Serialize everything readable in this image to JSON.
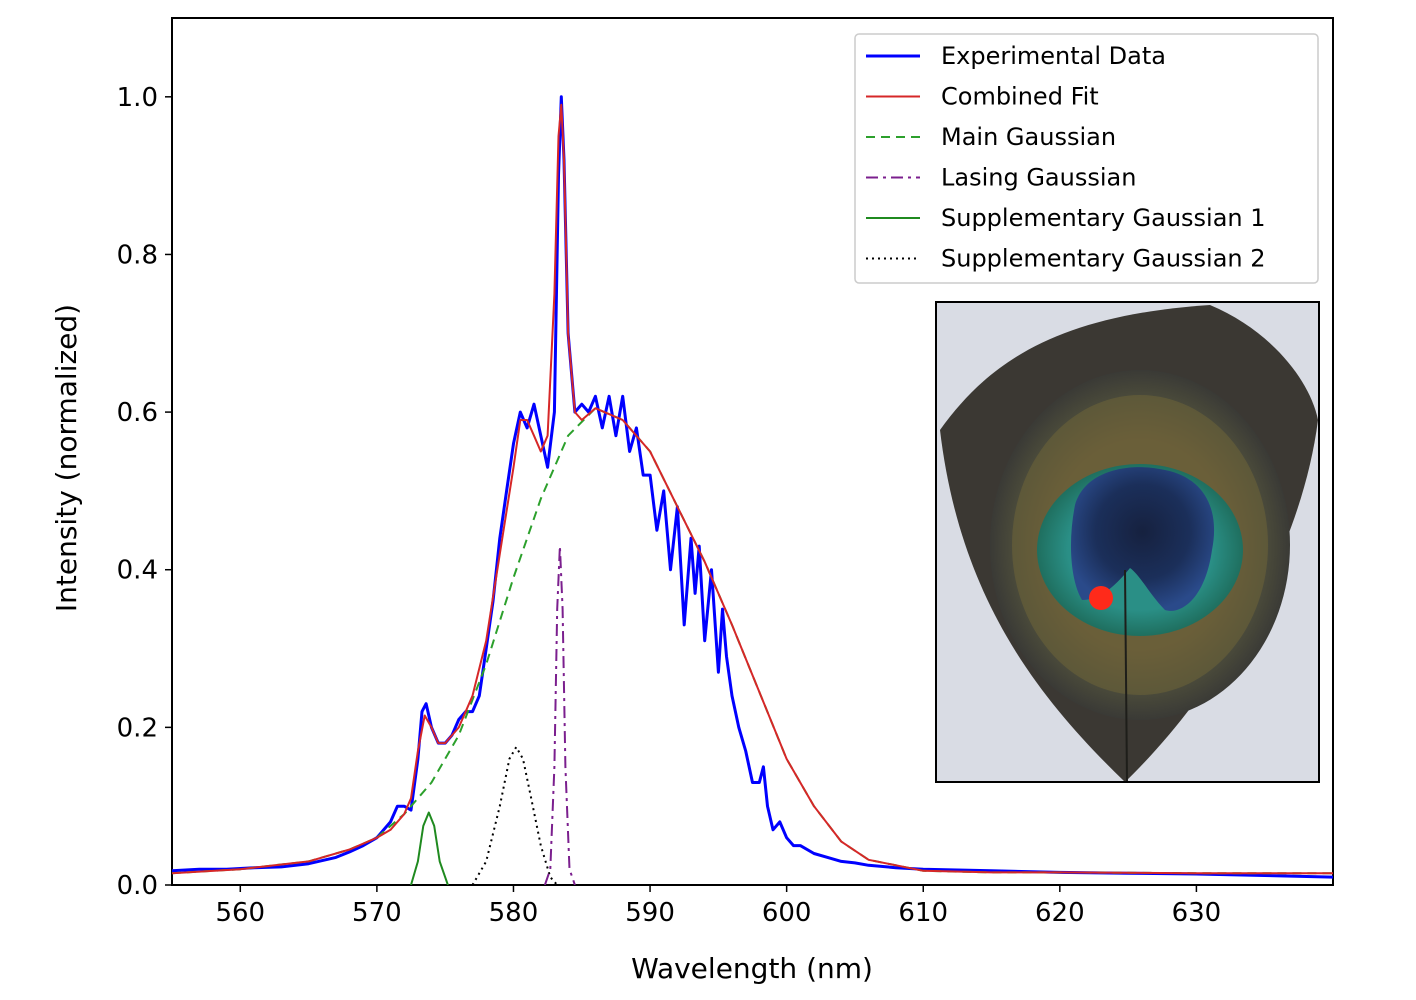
{
  "chart_data": {
    "type": "line",
    "xlabel": "Wavelength (nm)",
    "ylabel": "Intensity (normalized)",
    "xlim": [
      555,
      640
    ],
    "ylim": [
      0.0,
      1.1
    ],
    "x_ticks": [
      560,
      570,
      580,
      590,
      600,
      610,
      620,
      630
    ],
    "x_tick_labels": [
      "560",
      "570",
      "580",
      "590",
      "600",
      "610",
      "620",
      "630"
    ],
    "y_ticks": [
      0.0,
      0.2,
      0.4,
      0.6,
      0.8,
      1.0
    ],
    "y_tick_labels": [
      "0.0",
      "0.2",
      "0.4",
      "0.6",
      "0.8",
      "1.0"
    ],
    "grid": false,
    "legend_position": "top-right",
    "series": [
      {
        "name": "Experimental Data",
        "color": "#0000ff",
        "style": "solid",
        "x": [
          555,
          557,
          559,
          561,
          563,
          565,
          567,
          568,
          569,
          570,
          571,
          571.5,
          572,
          572.5,
          573,
          573.3,
          573.6,
          574,
          574.5,
          575,
          575.5,
          576,
          576.5,
          577,
          577.5,
          578,
          578.5,
          579,
          579.5,
          580,
          580.5,
          581,
          581.5,
          582,
          582.5,
          583,
          583.3,
          583.5,
          583.7,
          584,
          584.5,
          585,
          585.5,
          586,
          586.5,
          587,
          587.5,
          588,
          588.5,
          589,
          589.5,
          590,
          590.5,
          591,
          591.5,
          592,
          592.5,
          593,
          593.3,
          593.6,
          594,
          594.5,
          595,
          595.3,
          595.6,
          596,
          596.5,
          597,
          597.5,
          598,
          598.3,
          598.6,
          599,
          599.5,
          600,
          600.5,
          601,
          602,
          603,
          604,
          605,
          606,
          608,
          610,
          615,
          620,
          625,
          630,
          635,
          640
        ],
        "y": [
          0.018,
          0.02,
          0.02,
          0.022,
          0.023,
          0.027,
          0.035,
          0.042,
          0.05,
          0.06,
          0.08,
          0.1,
          0.1,
          0.095,
          0.16,
          0.22,
          0.23,
          0.2,
          0.18,
          0.18,
          0.19,
          0.21,
          0.22,
          0.22,
          0.24,
          0.3,
          0.36,
          0.44,
          0.5,
          0.56,
          0.6,
          0.58,
          0.61,
          0.57,
          0.53,
          0.6,
          0.9,
          1.0,
          0.92,
          0.7,
          0.6,
          0.61,
          0.6,
          0.62,
          0.58,
          0.62,
          0.57,
          0.62,
          0.55,
          0.58,
          0.52,
          0.52,
          0.45,
          0.5,
          0.4,
          0.48,
          0.33,
          0.44,
          0.37,
          0.43,
          0.31,
          0.4,
          0.27,
          0.35,
          0.29,
          0.24,
          0.2,
          0.17,
          0.13,
          0.13,
          0.15,
          0.1,
          0.07,
          0.08,
          0.06,
          0.05,
          0.05,
          0.04,
          0.035,
          0.03,
          0.028,
          0.025,
          0.022,
          0.02,
          0.018,
          0.016,
          0.015,
          0.014,
          0.012,
          0.01
        ]
      },
      {
        "name": "Combined Fit",
        "color": "#d62728",
        "style": "solid",
        "x": [
          555,
          560,
          565,
          568,
          570,
          571,
          572,
          572.5,
          573,
          573.5,
          574,
          574.5,
          575,
          576,
          577,
          578,
          579,
          580,
          580.5,
          581,
          581.5,
          582,
          582.5,
          583,
          583.3,
          583.5,
          583.7,
          584,
          584.5,
          585,
          586,
          588,
          590,
          592,
          594,
          596,
          598,
          600,
          602,
          604,
          606,
          610,
          615,
          620,
          630,
          640
        ],
        "y": [
          0.015,
          0.02,
          0.03,
          0.045,
          0.06,
          0.07,
          0.09,
          0.11,
          0.17,
          0.215,
          0.2,
          0.18,
          0.18,
          0.2,
          0.24,
          0.31,
          0.42,
          0.53,
          0.59,
          0.59,
          0.57,
          0.55,
          0.57,
          0.75,
          0.95,
          0.99,
          0.92,
          0.7,
          0.6,
          0.59,
          0.605,
          0.59,
          0.55,
          0.48,
          0.41,
          0.33,
          0.245,
          0.16,
          0.1,
          0.055,
          0.032,
          0.018,
          0.016,
          0.016,
          0.015,
          0.015
        ]
      },
      {
        "name": "Main Gaussian",
        "color": "#2ca02c",
        "style": "dashed",
        "x": [
          555,
          560,
          565,
          568,
          570,
          572,
          574,
          576,
          578,
          580,
          582,
          584,
          586,
          588,
          590,
          592,
          594,
          596,
          598,
          600,
          602,
          604,
          606,
          610,
          615,
          620,
          630,
          640
        ],
        "y": [
          0.015,
          0.02,
          0.03,
          0.045,
          0.06,
          0.09,
          0.13,
          0.19,
          0.28,
          0.39,
          0.49,
          0.57,
          0.605,
          0.59,
          0.55,
          0.48,
          0.41,
          0.33,
          0.245,
          0.16,
          0.1,
          0.055,
          0.032,
          0.018,
          0.016,
          0.016,
          0.015,
          0.015
        ]
      },
      {
        "name": "Lasing Gaussian",
        "color": "#7b1f8e",
        "style": "dashdot",
        "x": [
          582.3,
          582.7,
          583,
          583.2,
          583.4,
          583.6,
          583.8,
          584.1,
          584.5
        ],
        "y": [
          0.0,
          0.02,
          0.15,
          0.35,
          0.43,
          0.35,
          0.15,
          0.02,
          0.0
        ]
      },
      {
        "name": "Supplementary Gaussian 1",
        "color": "#1f8a1f",
        "style": "solid",
        "x": [
          572.5,
          573,
          573.4,
          573.8,
          574.2,
          574.6,
          575.2
        ],
        "y": [
          0.0,
          0.03,
          0.075,
          0.092,
          0.075,
          0.03,
          0.0
        ]
      },
      {
        "name": "Supplementary Gaussian 2",
        "color": "#000000",
        "style": "dotted",
        "x": [
          577,
          578,
          579,
          579.7,
          580.2,
          580.7,
          581.3,
          582,
          582.7,
          583.2
        ],
        "y": [
          0.0,
          0.03,
          0.1,
          0.16,
          0.175,
          0.16,
          0.11,
          0.05,
          0.01,
          0.0
        ]
      }
    ],
    "inset": {
      "description_icon": "peacock-feather-photo",
      "marker_color": "#ff2a1a"
    }
  }
}
